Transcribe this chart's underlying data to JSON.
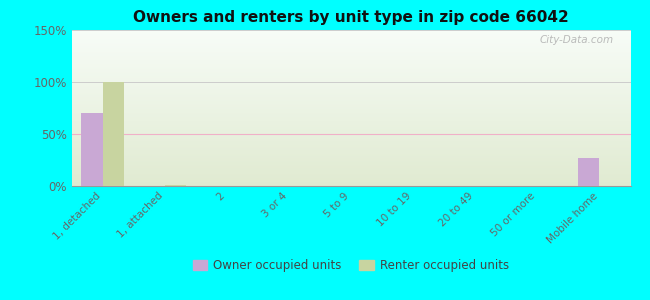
{
  "title": "Owners and renters by unit type in zip code 66042",
  "categories": [
    "1, detached",
    "1, attached",
    "2",
    "3 or 4",
    "5 to 9",
    "10 to 19",
    "20 to 49",
    "50 or more",
    "Mobile home"
  ],
  "owner_values": [
    70,
    0,
    0,
    0,
    0,
    0,
    0,
    0,
    27
  ],
  "renter_values": [
    100,
    1,
    0,
    0,
    0,
    0,
    0,
    0,
    0
  ],
  "owner_color": "#c9a8d4",
  "renter_color": "#c8d4a0",
  "background_color": "#00ffff",
  "ylim": [
    0,
    150
  ],
  "yticks": [
    0,
    50,
    100,
    150
  ],
  "ytick_labels": [
    "0%",
    "50%",
    "100%",
    "150%"
  ],
  "bar_width": 0.35,
  "legend_owner": "Owner occupied units",
  "legend_renter": "Renter occupied units",
  "watermark": "City-Data.com"
}
